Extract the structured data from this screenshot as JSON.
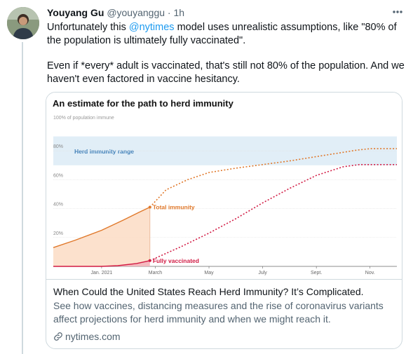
{
  "tweet": {
    "author_name": "Youyang Gu",
    "author_handle": "@youyanggu",
    "separator": "·",
    "time": "1h",
    "text_line1_before": "Unfortunately this ",
    "mention": "@nytimes",
    "text_line1_after": " model uses unrealistic assumptions, like \"80% of the population is ultimately fully vaccinated\".",
    "text_para2": "Even if *every* adult is vaccinated, that's still not 80% of the population. And we haven't even factored in vaccine hesitancy.",
    "more_icon": "more-horizontal-icon",
    "avatar_icon": "user-avatar"
  },
  "card": {
    "headline": "When Could the United States Reach Herd Immunity? It’s Complicated.",
    "description": "See how vaccines, distancing measures and the rise of coronavirus variants affect projections for herd immunity and when we might reach it.",
    "domain": "nytimes.com",
    "link_icon": "link-icon"
  },
  "chart_data": {
    "type": "line",
    "title": "An estimate for the path to herd immunity",
    "ylabel": "",
    "y_top_label": "100% of population immune",
    "ytick_labels": [
      "80%",
      "60%",
      "40%",
      "20%"
    ],
    "ytick_values": [
      80,
      60,
      40,
      20
    ],
    "xtick_labels": [
      "Jan. 2021",
      "March",
      "May",
      "July",
      "Sept.",
      "Nov."
    ],
    "xtick_values": [
      1,
      3,
      5,
      7,
      9,
      11
    ],
    "xlim": [
      -0.8,
      12
    ],
    "ylim": [
      0,
      100
    ],
    "band": {
      "label": "Herd immunity range",
      "from": 70,
      "to": 90,
      "color": "#e1eef7"
    },
    "series": [
      {
        "name": "Total immunity",
        "color": "#e0782a",
        "observed": [
          [
            -0.8,
            13
          ],
          [
            0,
            18
          ],
          [
            1,
            25
          ],
          [
            1.8,
            32
          ],
          [
            2.4,
            37.5
          ],
          [
            2.8,
            41
          ]
        ],
        "projected": [
          [
            2.8,
            41
          ],
          [
            3.4,
            53
          ],
          [
            4.2,
            60
          ],
          [
            5,
            65
          ],
          [
            6,
            68
          ],
          [
            7,
            70.5
          ],
          [
            8,
            73
          ],
          [
            9,
            76
          ],
          [
            10,
            79
          ],
          [
            10.5,
            80.5
          ],
          [
            11,
            81.5
          ],
          [
            12,
            81.5
          ]
        ]
      },
      {
        "name": "Fully vaccinated",
        "color": "#d11a43",
        "observed": [
          [
            -0.8,
            0
          ],
          [
            1,
            0
          ],
          [
            1.6,
            0.5
          ],
          [
            2.3,
            2
          ],
          [
            2.8,
            4
          ]
        ],
        "projected": [
          [
            2.8,
            4
          ],
          [
            4,
            14
          ],
          [
            5,
            23
          ],
          [
            6,
            33
          ],
          [
            7,
            44
          ],
          [
            8,
            54
          ],
          [
            9,
            63
          ],
          [
            10,
            69
          ],
          [
            10.6,
            70.5
          ],
          [
            11,
            70.5
          ],
          [
            12,
            70.5
          ]
        ]
      }
    ],
    "grid": true
  }
}
